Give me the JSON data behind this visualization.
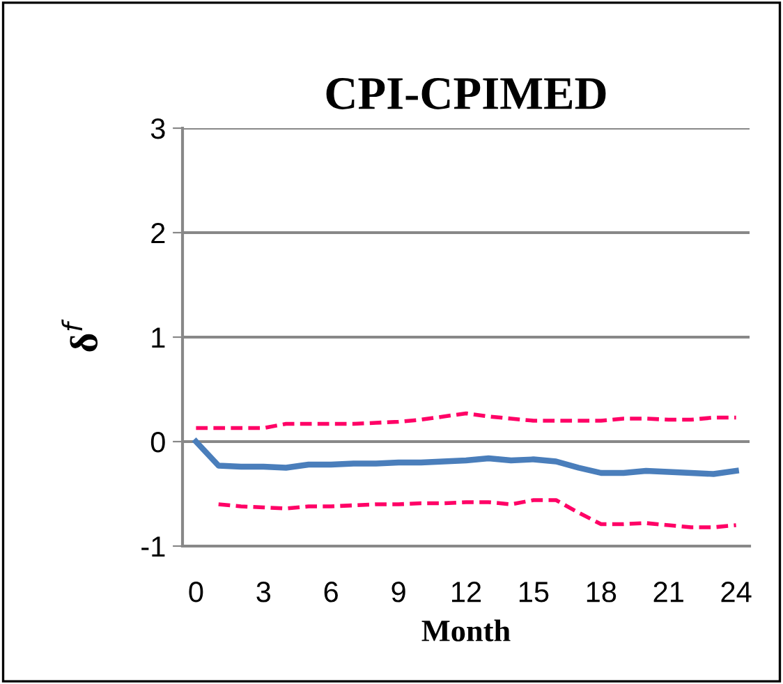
{
  "chart_data": {
    "type": "line",
    "title": "CPI-CPIMED",
    "xlabel": "Month",
    "ylabel": "δ$^{f}$",
    "categories": [
      "0",
      null,
      null,
      "3",
      null,
      null,
      "6",
      null,
      null,
      "9",
      null,
      null,
      "12",
      null,
      null,
      "15",
      null,
      null,
      "18",
      null,
      null,
      "21",
      null,
      null,
      "24"
    ],
    "series": [
      {
        "color": "#4a7ebb",
        "line_style": "solid",
        "values": [
          0,
          -0.23,
          -0.24,
          -0.24,
          -0.25,
          -0.22,
          -0.22,
          -0.21,
          -0.21,
          -0.2,
          -0.2,
          -0.19,
          -0.18,
          -0.16,
          -0.18,
          -0.17,
          -0.19,
          -0.25,
          -0.3,
          -0.3,
          -0.28,
          -0.29,
          -0.3,
          -0.31,
          -0.28
        ]
      },
      {
        "color": "#ff0066",
        "line_style": "dashed",
        "values": [
          0.13,
          0.13,
          0.13,
          0.13,
          0.17,
          0.17,
          0.17,
          0.17,
          0.18,
          0.19,
          0.21,
          0.24,
          0.27,
          0.24,
          0.22,
          0.2,
          0.2,
          0.2,
          0.2,
          0.22,
          0.22,
          0.21,
          0.21,
          0.23,
          0.23
        ]
      },
      {
        "color": "#ff0066",
        "line_style": "dashed",
        "values": [
          null,
          -0.6,
          -0.62,
          -0.63,
          -0.64,
          -0.62,
          -0.62,
          -0.61,
          -0.6,
          -0.6,
          -0.59,
          -0.59,
          -0.58,
          -0.58,
          -0.6,
          -0.56,
          -0.56,
          -0.68,
          -0.79,
          -0.79,
          -0.78,
          -0.8,
          -0.82,
          -0.82,
          -0.8
        ]
      }
    ],
    "ylim": [
      -1,
      3
    ],
    "yticks": [
      -1,
      0,
      1,
      2,
      3
    ],
    "grid": "y",
    "legend": false
  }
}
